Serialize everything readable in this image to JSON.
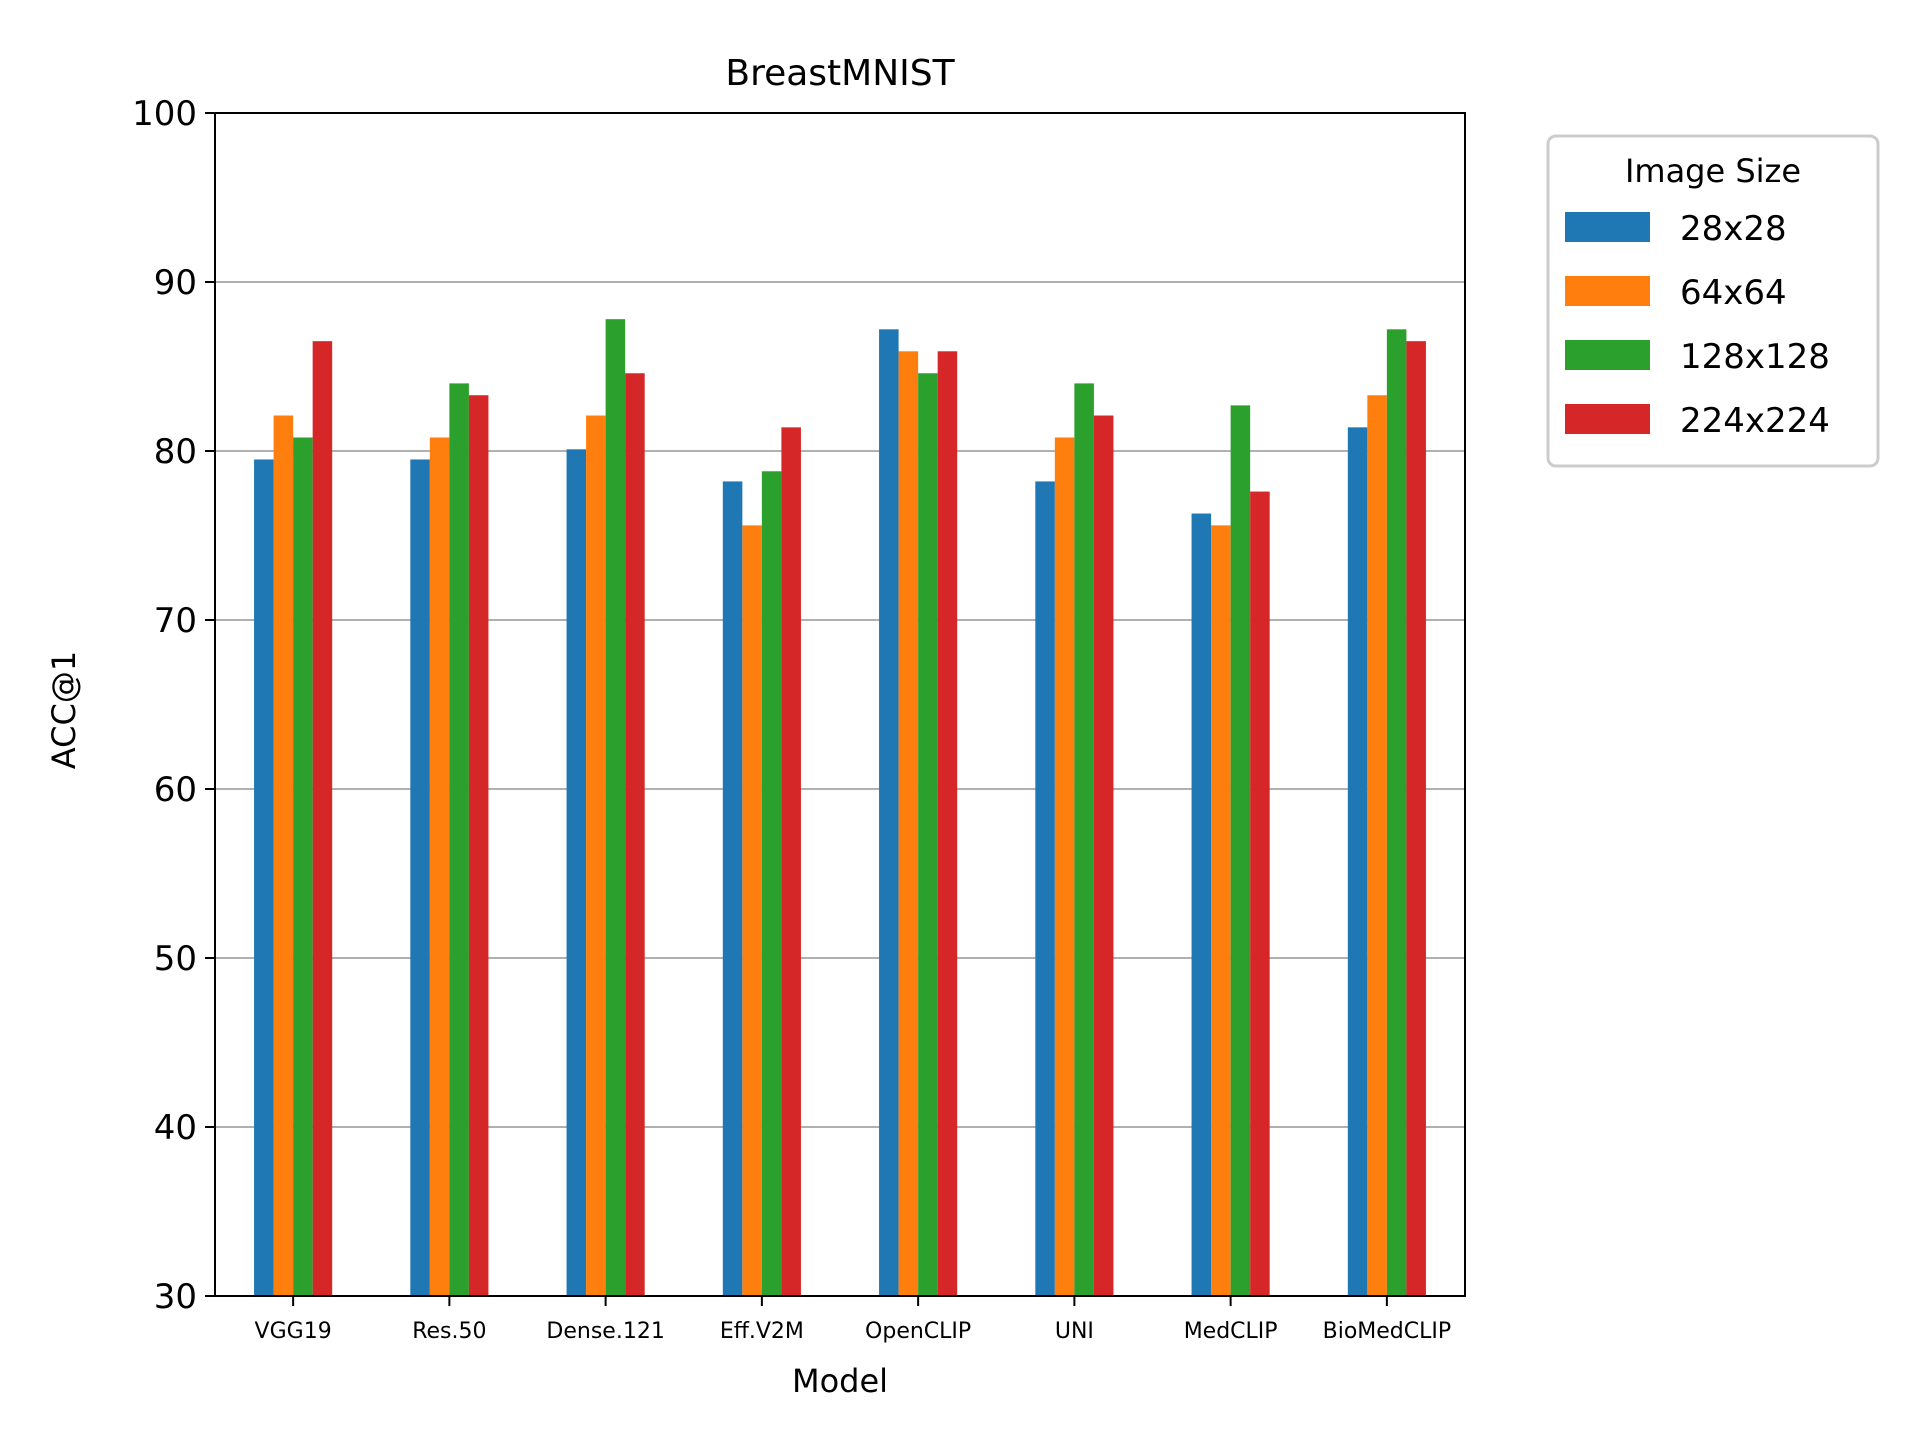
{
  "chart_data": {
    "type": "bar",
    "title": "BreastMNIST",
    "xlabel": "Model",
    "ylabel": "ACC@1",
    "ylim": [
      30,
      100
    ],
    "yticks": [
      30,
      40,
      50,
      60,
      70,
      80,
      90,
      100
    ],
    "grid": "horizontal",
    "legend": {
      "title": "Image Size",
      "placement": "outside-right-top"
    },
    "categories": [
      "VGG19",
      "Res.50",
      "Dense.121",
      "Eff.V2M",
      "OpenCLIP",
      "UNI",
      "MedCLIP",
      "BioMedCLIP"
    ],
    "series": [
      {
        "name": "28x28",
        "color": "#1f77b4",
        "values": [
          79.5,
          79.5,
          80.1,
          78.2,
          87.2,
          78.2,
          76.3,
          81.4
        ]
      },
      {
        "name": "64x64",
        "color": "#ff7f0e",
        "values": [
          82.1,
          80.8,
          82.1,
          75.6,
          85.9,
          80.8,
          75.6,
          83.3
        ]
      },
      {
        "name": "128x128",
        "color": "#2ca02c",
        "values": [
          80.8,
          84.0,
          87.8,
          78.8,
          84.6,
          84.0,
          82.7,
          87.2
        ]
      },
      {
        "name": "224x224",
        "color": "#d62728",
        "values": [
          86.5,
          83.3,
          84.6,
          81.4,
          85.9,
          82.1,
          77.6,
          86.5
        ]
      }
    ]
  }
}
